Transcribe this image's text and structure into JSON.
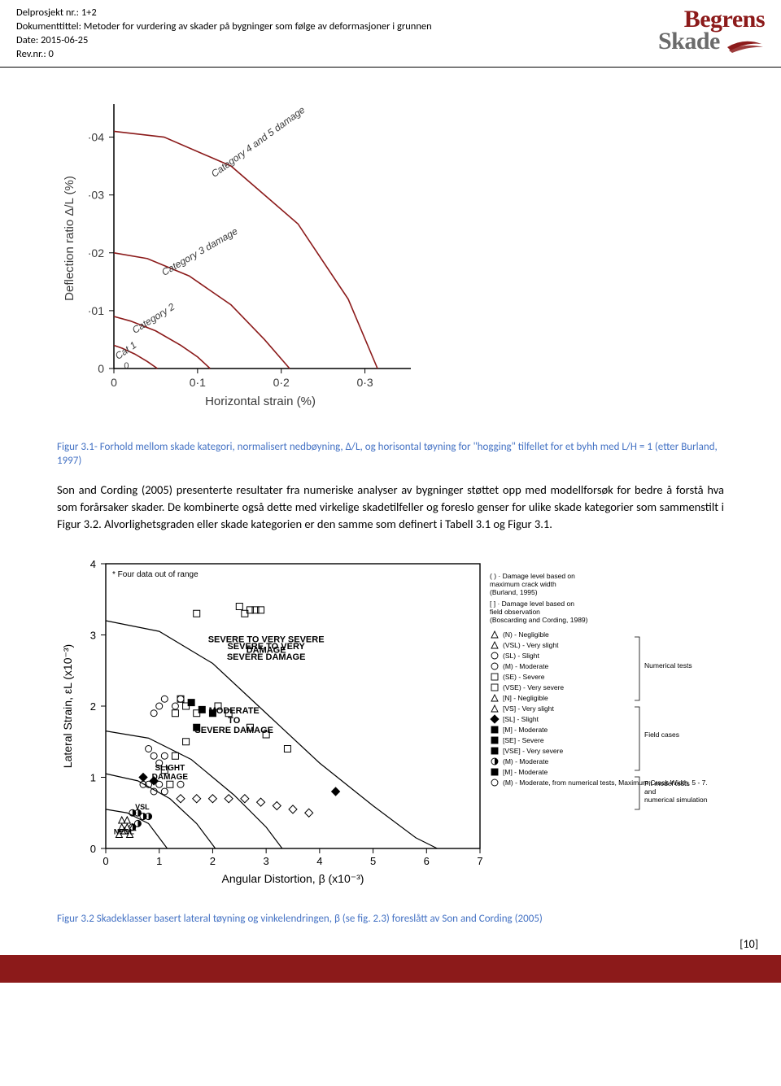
{
  "header": {
    "line1": "Delprosjekt nr.: 1+2",
    "line2": "Dokumenttittel: Metoder for vurdering av skader på bygninger som følge av deformasjoner i grunnen",
    "line3": "Date: 2015-06-25",
    "line4": "Rev.nr.: 0"
  },
  "logo": {
    "top": "Begrens",
    "bottom": "Skade"
  },
  "fig31": {
    "caption": "Figur 3.1- Forhold mellom skade kategori, normalisert nedbøyning, Δ/L, og horisontal tøyning for \"hogging\" tilfellet  for et byhh med L/H = 1 (etter Burland, 1997)",
    "xlabel": "Horizontal strain (%)",
    "ylabel": "Deflection ratio Δ/L  (%)",
    "xticks": [
      "0",
      "0·1",
      "0·2",
      "0·3"
    ],
    "yticks": [
      "0",
      "·01",
      "·02",
      "·03",
      "·04"
    ],
    "labels": {
      "cat1": "Cat 1",
      "cat2": "Category 2",
      "cat3": "Category 3 damage",
      "cat45": "Category 4 and 5 damage"
    },
    "line_color": "#8b1a1a",
    "axis_color": "#000000",
    "font_color": "#3a3a3a"
  },
  "paragraph": "Son and Cording (2005) presenterte resultater fra numeriske analyser av bygninger støttet opp med modellforsøk for bedre å forstå hva som forårsaker skader. De kombinerte også dette med virkelige skadetilfeller og foreslo genser for ulike skade kategorier som sammenstilt i Figur 3.2. Alvorlighetsgraden eller skade kategorien er den samme som definert i Tabell 3.1 og Figur 3.1.",
  "fig32": {
    "caption": "Figur 3.2 Skadeklasser basert lateral tøyning og vinkelendringen, β (se fig. 2.3) foreslått av Son and Cording (2005)",
    "xlabel": "Angular Distortion, β (x10⁻³)",
    "ylabel": "Lateral Strain, εL (x10⁻³)",
    "xticks": [
      "0",
      "1",
      "2",
      "3",
      "4",
      "5",
      "6",
      "7"
    ],
    "yticks": [
      "0",
      "1",
      "2",
      "3",
      "4"
    ],
    "note_top": "* Four data out of range",
    "region_severe": "SEVERE TO VERY SEVERE DAMAGE",
    "region_mod": "MODERATE TO SEVERE DAMAGE",
    "region_slight": "SLIGHT DAMAGE",
    "lbl_vsl": "VSL",
    "lbl_negl": "NEGL",
    "legend_title1": "( )  · Damage level based on maximum crack width (Burland, 1995)",
    "legend_title2": "[ ]  · Damage level based on field observation (Boscarding and Cording, 1989)",
    "legend_col_num": "Numerical tests",
    "legend_col_fld": "Field cases",
    "legend_col_pit": "Pit model tests and numerical simulations",
    "legend_items": [
      "(N)   - Negligible",
      "(VSL) - Very slight",
      "(SL)  - Slight",
      "(M)   - Moderate",
      "(SE)  - Severe",
      "(VSE) - Very severe",
      "[N]   - Negligible",
      "[VS]  - Very slight",
      "[SL]  - Slight",
      "[M]   - Moderate",
      "[SE]  - Severe",
      "[VSE] - Very severe",
      "(M)   - Moderate",
      "[M]   - Moderate",
      "(M)   - Moderate, from numerical tests, Maximum Crack Width, 5 - 7.5 mm"
    ],
    "marker_color": "#000000",
    "line_color": "#000000",
    "open_squares": [
      [
        1.7,
        3.3
      ],
      [
        2.5,
        3.4
      ],
      [
        2.6,
        3.3
      ],
      [
        2.7,
        3.35
      ],
      [
        2.8,
        3.35
      ],
      [
        2.9,
        3.35
      ],
      [
        1.4,
        2.1
      ],
      [
        1.5,
        2.0
      ],
      [
        1.3,
        1.9
      ],
      [
        1.7,
        1.9
      ],
      [
        1.5,
        1.5
      ],
      [
        1.3,
        1.3
      ],
      [
        1.1,
        1.1
      ],
      [
        1.2,
        0.9
      ],
      [
        2.1,
        2.0
      ],
      [
        2.3,
        1.9
      ],
      [
        2.7,
        1.7
      ],
      [
        3.0,
        1.6
      ],
      [
        3.4,
        1.4
      ]
    ],
    "open_circles": [
      [
        0.9,
        1.9
      ],
      [
        1.0,
        2.0
      ],
      [
        1.1,
        2.1
      ],
      [
        1.3,
        2.0
      ],
      [
        1.4,
        2.1
      ],
      [
        0.8,
        1.4
      ],
      [
        0.9,
        1.3
      ],
      [
        1.0,
        1.2
      ],
      [
        1.1,
        1.3
      ],
      [
        0.7,
        0.9
      ],
      [
        0.8,
        0.9
      ],
      [
        0.9,
        0.8
      ],
      [
        1.0,
        0.9
      ],
      [
        1.1,
        0.8
      ],
      [
        1.4,
        0.9
      ]
    ],
    "open_diamonds": [
      [
        1.4,
        0.7
      ],
      [
        1.7,
        0.7
      ],
      [
        2.0,
        0.7
      ],
      [
        2.3,
        0.7
      ],
      [
        2.6,
        0.7
      ],
      [
        2.9,
        0.65
      ],
      [
        3.2,
        0.6
      ],
      [
        3.5,
        0.55
      ],
      [
        3.8,
        0.5
      ]
    ],
    "filled_squares": [
      [
        1.6,
        2.05
      ],
      [
        1.8,
        1.95
      ],
      [
        2.0,
        1.9
      ],
      [
        1.7,
        1.7
      ]
    ],
    "filled_diamonds": [
      [
        0.7,
        1.0
      ],
      [
        0.9,
        0.95
      ],
      [
        4.3,
        0.8
      ]
    ],
    "filled_circles_half": [
      [
        0.5,
        0.5
      ],
      [
        0.6,
        0.5
      ],
      [
        0.7,
        0.45
      ],
      [
        0.8,
        0.45
      ],
      [
        0.6,
        0.35
      ],
      [
        0.5,
        0.3
      ]
    ],
    "little_tris": [
      [
        0.3,
        0.4
      ],
      [
        0.4,
        0.4
      ],
      [
        0.3,
        0.3
      ],
      [
        0.4,
        0.3
      ],
      [
        0.5,
        0.3
      ],
      [
        0.35,
        0.25
      ],
      [
        0.45,
        0.2
      ],
      [
        0.25,
        0.2
      ]
    ]
  },
  "page_number": "[10]"
}
